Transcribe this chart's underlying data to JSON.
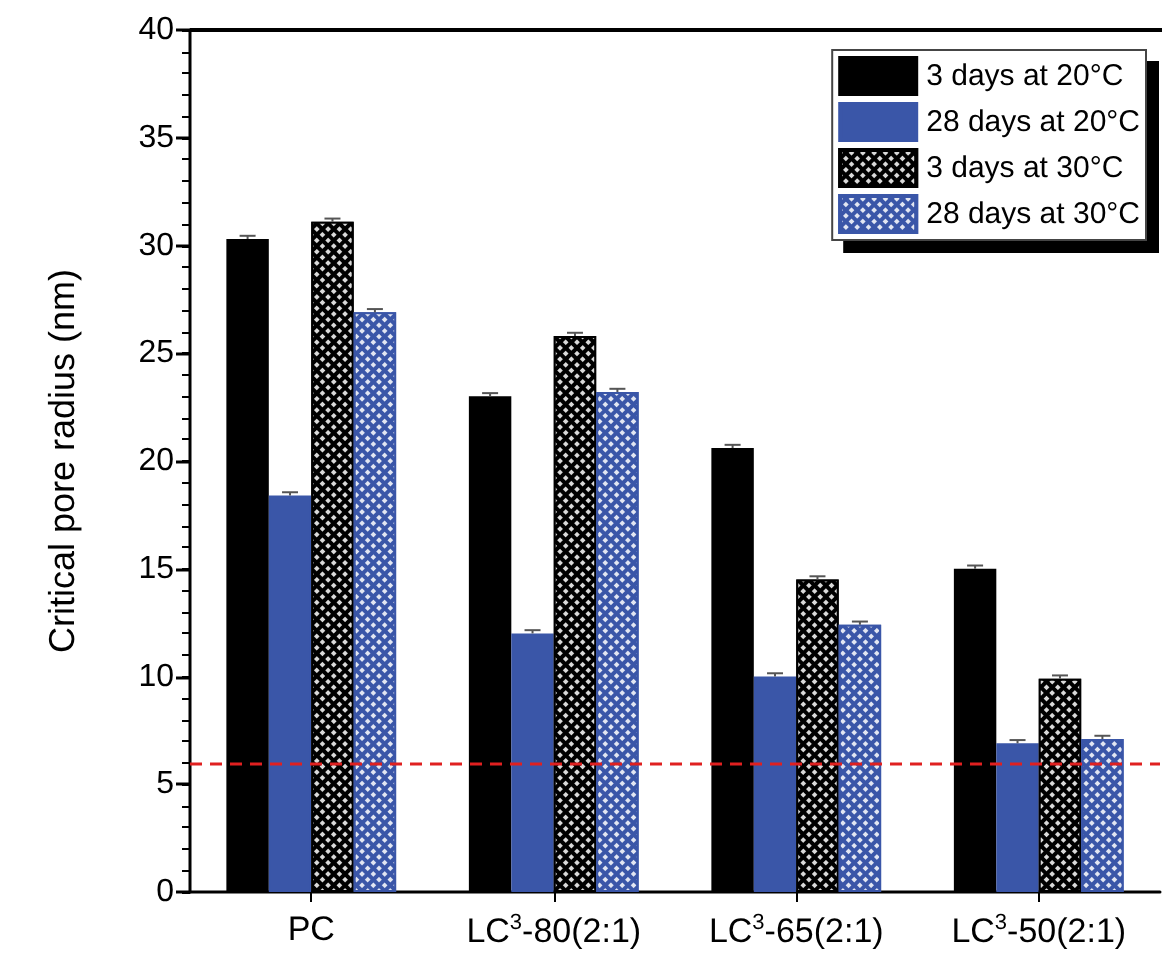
{
  "chart_data": {
    "type": "bar",
    "ylabel": "Critical pore radius (nm)",
    "categories": [
      "PC",
      "LC$^{3}$-80(2:1)",
      "LC$^{3}$-65(2:1)",
      "LC$^{3}$-50(2:1)"
    ],
    "series": [
      {
        "name": "3 days at 20°C",
        "color": "#000000",
        "values": [
          30.3,
          23.0,
          20.6,
          15.0
        ],
        "errors": [
          0.15,
          0.15,
          0.15,
          0.15
        ]
      },
      {
        "name": "28 days at 20°C",
        "color": "#3a56a8",
        "values": [
          18.4,
          12.0,
          10.0,
          6.9
        ],
        "errors": [
          0.15,
          0.15,
          0.15,
          0.15
        ]
      },
      {
        "name": "3 days at 30°C",
        "color": "#000000",
        "values": [
          31.1,
          25.8,
          14.5,
          9.9
        ],
        "errors": [
          0.15,
          0.15,
          0.15,
          0.15
        ]
      },
      {
        "name": "28 days at 30°C",
        "color": "#3a56a8",
        "values": [
          26.9,
          23.2,
          12.4,
          7.1
        ],
        "errors": [
          0.15,
          0.15,
          0.15,
          0.15
        ]
      }
    ],
    "ylim": [
      0,
      40
    ],
    "yticks": [
      0,
      5,
      10,
      15,
      20,
      25,
      30,
      35,
      40
    ],
    "ref_lines": [
      {
        "axis": "y",
        "value": 6,
        "label": null,
        "color": "#e02020",
        "line_style": "dashed"
      }
    ],
    "grid": false,
    "legend": "top right"
  }
}
